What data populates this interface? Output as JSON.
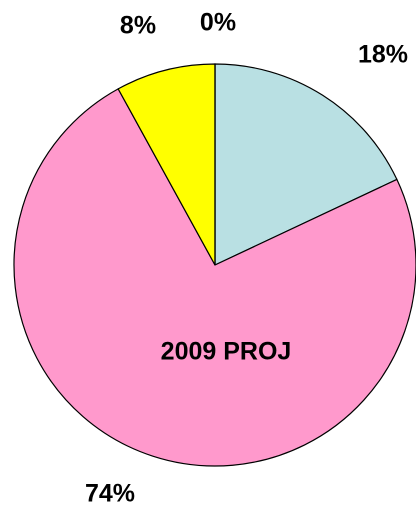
{
  "chart_data": {
    "type": "pie",
    "annotation": "2009 PROJ",
    "values": [
      18,
      74,
      8,
      0
    ],
    "value_labels": [
      "18%",
      "74%",
      "8%",
      "0%"
    ],
    "colors": [
      "#b9e0e3",
      "#ff99cc",
      "#ffff00",
      "#ffffff"
    ]
  }
}
